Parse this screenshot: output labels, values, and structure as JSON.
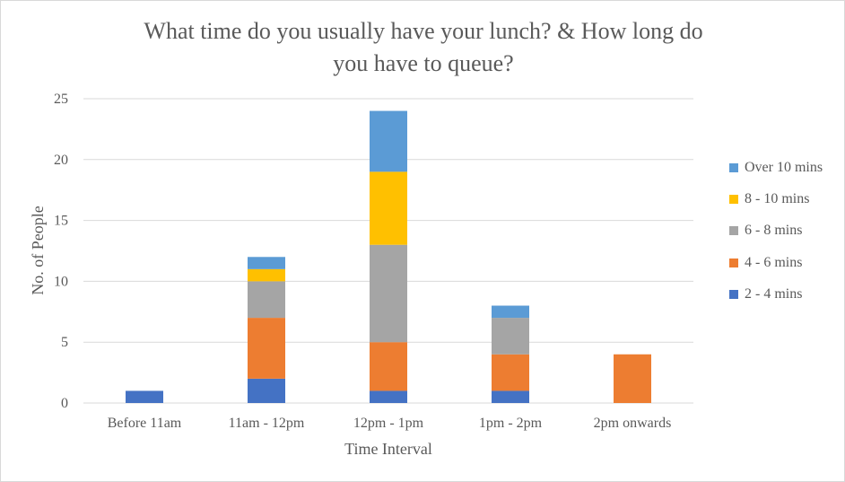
{
  "chart_data": {
    "type": "bar",
    "stacked": true,
    "title_lines": [
      "What time do you usually have your lunch? & How long do",
      "you have to queue?"
    ],
    "xlabel": "Time Interval",
    "ylabel": "No. of People",
    "ylim": [
      0,
      25
    ],
    "yticks": [
      0,
      5,
      10,
      15,
      20,
      25
    ],
    "grid": true,
    "legend_position": "right",
    "categories": [
      "Before 11am",
      "11am - 12pm",
      "12pm - 1pm",
      "1pm - 2pm",
      "2pm onwards"
    ],
    "series": [
      {
        "name": "2 - 4 mins",
        "color": "#4472c4",
        "values": [
          1,
          2,
          1,
          1,
          0
        ]
      },
      {
        "name": "4 - 6 mins",
        "color": "#ed7d31",
        "values": [
          0,
          5,
          4,
          3,
          4
        ]
      },
      {
        "name": "6 - 8 mins",
        "color": "#a5a5a5",
        "values": [
          0,
          3,
          8,
          3,
          0
        ]
      },
      {
        "name": "8 - 10 mins",
        "color": "#ffc000",
        "values": [
          0,
          1,
          6,
          0,
          0
        ]
      },
      {
        "name": "Over 10 mins",
        "color": "#5b9bd5",
        "values": [
          0,
          1,
          5,
          1,
          0
        ]
      }
    ]
  }
}
